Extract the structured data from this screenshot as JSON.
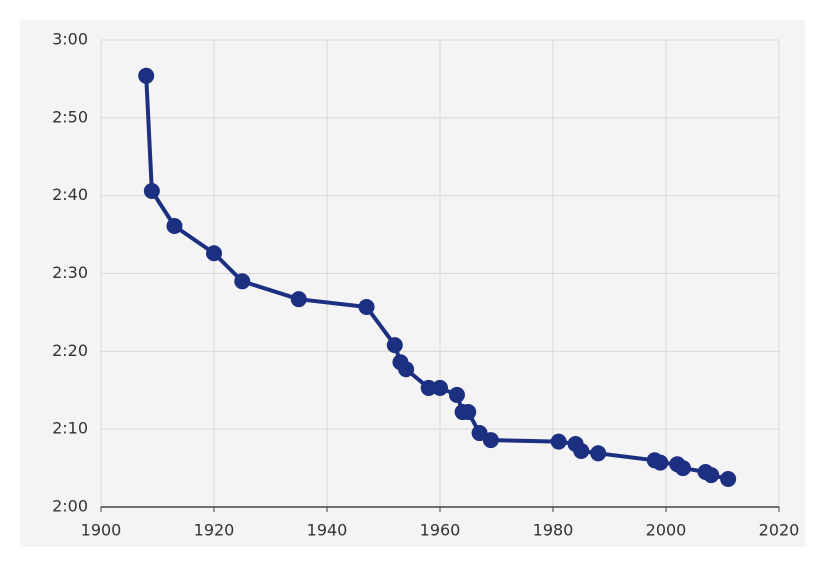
{
  "chart_data": {
    "type": "line",
    "x": [
      1908,
      1909,
      1913,
      1920,
      1925,
      1935,
      1947,
      1952,
      1953,
      1954,
      1958,
      1960,
      1963,
      1964,
      1965,
      1967,
      1969,
      1981,
      1984,
      1985,
      1988,
      1998,
      1999,
      2002,
      2003,
      2007,
      2008,
      2011
    ],
    "values": [
      175.4,
      160.6,
      156.1,
      152.6,
      149.0,
      146.7,
      145.7,
      140.8,
      138.6,
      137.7,
      135.3,
      135.3,
      134.4,
      132.2,
      132.2,
      129.5,
      128.6,
      128.4,
      128.1,
      127.2,
      126.9,
      126.0,
      125.7,
      125.5,
      125.0,
      124.5,
      124.1,
      123.6
    ],
    "color": "#1c2f80",
    "xlim": [
      1900,
      2020
    ],
    "xticks": [
      1900,
      1920,
      1940,
      1960,
      1980,
      2000,
      2020
    ],
    "ylim": [
      120,
      180
    ],
    "yticks": [
      {
        "value": 120,
        "label": "2:00"
      },
      {
        "value": 130,
        "label": "2:10"
      },
      {
        "value": 140,
        "label": "2:20"
      },
      {
        "value": 150,
        "label": "2:30"
      },
      {
        "value": 160,
        "label": "2:40"
      },
      {
        "value": 170,
        "label": "2:50"
      },
      {
        "value": 180,
        "label": "3:00"
      }
    ],
    "grid": true
  }
}
